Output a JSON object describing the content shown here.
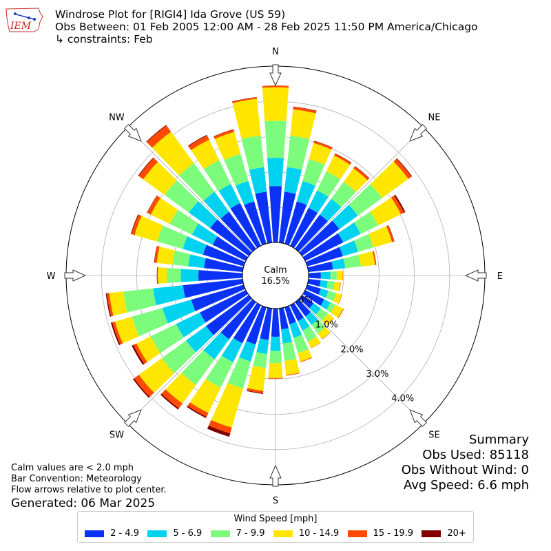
{
  "header": {
    "line1": "Windrose Plot for [RIGI4] Ida Grove (US 59)",
    "line2": "Obs Between: 01 Feb 2005 12:00 AM - 28 Feb 2025 11:50 PM America/Chicago",
    "line3": "↳ constraints: Feb",
    "logo_text": "IEM"
  },
  "notes": {
    "calm_note": "Calm values are < 2.0 mph",
    "bar_convention": "Bar Convention: Meteorology",
    "flow_note": "Flow arrows relative to plot center.",
    "generated": "Generated: 06 Mar 2025"
  },
  "summary": {
    "title": "Summary",
    "obs_used": "Obs Used: 85118",
    "obs_without_wind": "Obs Without Wind: 0",
    "avg_speed": "Avg Speed: 6.6 mph"
  },
  "legend": {
    "title": "Wind Speed [mph]",
    "items": [
      {
        "label": "2 - 4.9",
        "color": "#0a32f5"
      },
      {
        "label": "5 - 6.9",
        "color": "#00d2f0"
      },
      {
        "label": "7 - 9.9",
        "color": "#7cfc7c"
      },
      {
        "label": "10 - 14.9",
        "color": "#ffe600"
      },
      {
        "label": "15 - 19.9",
        "color": "#ff4a00"
      },
      {
        "label": "20+",
        "color": "#800000"
      }
    ]
  },
  "chart_data": {
    "type": "windrose",
    "calm_label": "Calm",
    "calm_value": "16.5%",
    "directions": [
      "N",
      "NE",
      "E",
      "SE",
      "S",
      "SW",
      "W",
      "NW"
    ],
    "radial_ticks": [
      "0.0%",
      "1.0%",
      "2.0%",
      "3.0%",
      "4.0%"
    ],
    "bin_width_deg": 10,
    "series_names": [
      "2 - 4.9",
      "5 - 6.9",
      "7 - 9.9",
      "10 - 14.9",
      "15 - 19.9",
      "20+"
    ],
    "cumulative_percent_by_bearing": [
      {
        "bearing": 0,
        "values": [
          1.6,
          2.4,
          3.45,
          4.4,
          4.45,
          4.45
        ]
      },
      {
        "bearing": 10,
        "values": [
          1.45,
          2.15,
          3.05,
          3.8,
          3.87,
          3.88
        ]
      },
      {
        "bearing": 20,
        "values": [
          1.25,
          1.85,
          2.5,
          2.97,
          3.03,
          3.04
        ]
      },
      {
        "bearing": 30,
        "values": [
          1.2,
          1.75,
          2.35,
          2.85,
          2.91,
          2.92
        ]
      },
      {
        "bearing": 40,
        "values": [
          1.2,
          1.75,
          2.35,
          2.82,
          2.89,
          2.9
        ]
      },
      {
        "bearing": 50,
        "values": [
          1.3,
          1.95,
          2.8,
          3.72,
          3.83,
          3.85
        ]
      },
      {
        "bearing": 60,
        "values": [
          1.2,
          1.75,
          2.3,
          3.02,
          3.12,
          3.16
        ]
      },
      {
        "bearing": 70,
        "values": [
          1.05,
          1.5,
          1.95,
          2.5,
          2.56,
          2.57
        ]
      },
      {
        "bearing": 80,
        "values": [
          0.7,
          1.05,
          1.5,
          1.9,
          1.94,
          1.94
        ]
      },
      {
        "bearing": 90,
        "values": [
          0.35,
          0.62,
          0.8,
          0.97,
          0.98,
          0.98
        ]
      },
      {
        "bearing": 100,
        "values": [
          0.35,
          0.55,
          0.75,
          0.92,
          0.93,
          0.93
        ]
      },
      {
        "bearing": 110,
        "values": [
          0.4,
          0.62,
          0.85,
          1.02,
          1.03,
          1.03
        ]
      },
      {
        "bearing": 120,
        "values": [
          0.6,
          0.8,
          0.95,
          1.2,
          1.22,
          1.22
        ]
      },
      {
        "bearing": 130,
        "values": [
          0.4,
          0.65,
          0.9,
          1.1,
          1.11,
          1.11
        ]
      },
      {
        "bearing": 140,
        "values": [
          0.5,
          0.8,
          1.1,
          1.3,
          1.31,
          1.31
        ]
      },
      {
        "bearing": 150,
        "values": [
          0.5,
          0.8,
          1.15,
          1.35,
          1.36,
          1.36
        ]
      },
      {
        "bearing": 160,
        "values": [
          0.5,
          0.9,
          1.35,
          1.6,
          1.62,
          1.62
        ]
      },
      {
        "bearing": 170,
        "values": [
          0.6,
          1.0,
          1.5,
          1.9,
          1.92,
          1.92
        ]
      },
      {
        "bearing": 180,
        "values": [
          0.8,
          1.2,
          1.55,
          1.97,
          1.99,
          1.99
        ]
      },
      {
        "bearing": 190,
        "values": [
          0.9,
          1.3,
          1.7,
          2.35,
          2.42,
          2.44
        ]
      },
      {
        "bearing": 200,
        "values": [
          1.1,
          1.6,
          2.4,
          3.55,
          3.72,
          3.82
        ]
      },
      {
        "bearing": 210,
        "values": [
          1.2,
          1.8,
          2.6,
          3.4,
          3.52,
          3.56
        ]
      },
      {
        "bearing": 220,
        "values": [
          1.3,
          2.0,
          2.9,
          3.55,
          3.72,
          3.76
        ]
      },
      {
        "bearing": 230,
        "values": [
          1.5,
          2.2,
          3.05,
          3.85,
          4.02,
          4.06
        ]
      },
      {
        "bearing": 240,
        "values": [
          1.45,
          2.2,
          3.0,
          3.45,
          3.55,
          3.6
        ]
      },
      {
        "bearing": 250,
        "values": [
          1.55,
          2.4,
          3.3,
          3.8,
          3.88,
          3.92
        ]
      },
      {
        "bearing": 260,
        "values": [
          1.7,
          2.55,
          3.4,
          3.8,
          3.87,
          3.9
        ]
      },
      {
        "bearing": 270,
        "values": [
          1.25,
          1.75,
          2.15,
          2.4,
          2.42,
          2.43
        ]
      },
      {
        "bearing": 280,
        "values": [
          1.1,
          1.55,
          2.0,
          2.45,
          2.52,
          2.53
        ]
      },
      {
        "bearing": 290,
        "values": [
          1.2,
          1.8,
          2.55,
          3.22,
          3.31,
          3.33
        ]
      },
      {
        "bearing": 300,
        "values": [
          1.05,
          1.7,
          2.4,
          3.0,
          3.11,
          3.12
        ]
      },
      {
        "bearing": 310,
        "values": [
          1.35,
          2.1,
          2.95,
          3.7,
          3.86,
          3.88
        ]
      },
      {
        "bearing": 320,
        "values": [
          1.3,
          2.0,
          3.0,
          4.1,
          4.32,
          4.34
        ]
      },
      {
        "bearing": 330,
        "values": [
          1.35,
          1.95,
          2.7,
          3.35,
          3.48,
          3.5
        ]
      },
      {
        "bearing": 340,
        "values": [
          1.25,
          1.85,
          2.65,
          3.3,
          3.37,
          3.38
        ]
      },
      {
        "bearing": 350,
        "values": [
          1.45,
          2.15,
          3.05,
          4.1,
          4.14,
          4.15
        ]
      }
    ],
    "rmax_percent": 5.0
  }
}
